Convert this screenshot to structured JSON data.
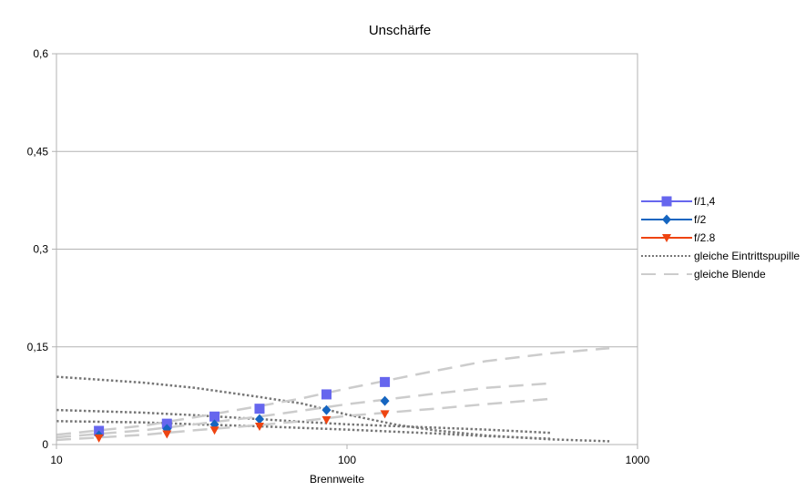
{
  "chart_data": {
    "type": "scatter",
    "title": "Unschärfe",
    "xlabel": "Brennweite",
    "ylabel": "",
    "x_scale": "log",
    "xlim": [
      10,
      1000
    ],
    "ylim": [
      0,
      0.6
    ],
    "x_ticks": [
      {
        "value": 10,
        "label": "10"
      },
      {
        "value": 100,
        "label": "100"
      },
      {
        "value": 1000,
        "label": "1000"
      }
    ],
    "y_ticks": [
      {
        "value": 0,
        "label": "0"
      },
      {
        "value": 0.15,
        "label": "0,15"
      },
      {
        "value": 0.3,
        "label": "0,3"
      },
      {
        "value": 0.45,
        "label": "0,45"
      },
      {
        "value": 0.6,
        "label": "0,6"
      }
    ],
    "grid": "horizontal",
    "legend_position": "right",
    "series": [
      {
        "name": "f/1,4",
        "marker": "square",
        "color": "#6666ee",
        "points": [
          [
            14,
            0.021
          ],
          [
            24,
            0.032
          ],
          [
            35,
            0.043
          ],
          [
            50,
            0.055
          ],
          [
            85,
            0.077
          ],
          [
            135,
            0.096
          ]
        ]
      },
      {
        "name": "f/2",
        "marker": "diamond",
        "color": "#1565c0",
        "points": [
          [
            14,
            0.014
          ],
          [
            24,
            0.024
          ],
          [
            35,
            0.031
          ],
          [
            50,
            0.039
          ],
          [
            85,
            0.053
          ],
          [
            135,
            0.067
          ]
        ]
      },
      {
        "name": "f/2.8",
        "marker": "triangle-down",
        "color": "#ee4411",
        "points": [
          [
            14,
            0.01
          ],
          [
            24,
            0.016
          ],
          [
            35,
            0.022
          ],
          [
            50,
            0.028
          ],
          [
            85,
            0.038
          ],
          [
            135,
            0.047
          ]
        ]
      }
    ],
    "reference_lines": [
      {
        "name": "gleiche Eintrittspupille",
        "style": "dotted",
        "color": "#777777",
        "curves": [
          [
            [
              10,
              0.104
            ],
            [
              20,
              0.095
            ],
            [
              30,
              0.087
            ],
            [
              50,
              0.073
            ],
            [
              70,
              0.063
            ],
            [
              100,
              0.046
            ],
            [
              150,
              0.03
            ],
            [
              200,
              0.022
            ],
            [
              300,
              0.014
            ],
            [
              500,
              0.008
            ],
            [
              800,
              0.005
            ]
          ],
          [
            [
              10,
              0.053
            ],
            [
              20,
              0.049
            ],
            [
              30,
              0.045
            ],
            [
              50,
              0.039
            ],
            [
              70,
              0.035
            ],
            [
              100,
              0.031
            ],
            [
              200,
              0.026
            ],
            [
              300,
              0.023
            ],
            [
              500,
              0.018
            ]
          ],
          [
            [
              10,
              0.036
            ],
            [
              20,
              0.034
            ],
            [
              30,
              0.031
            ],
            [
              50,
              0.028
            ],
            [
              100,
              0.023
            ],
            [
              200,
              0.017
            ],
            [
              300,
              0.013
            ],
            [
              500,
              0.009
            ]
          ]
        ]
      },
      {
        "name": "gleiche Blende",
        "style": "dashed",
        "color": "#cccccc",
        "curves": [
          [
            [
              10,
              0.015
            ],
            [
              20,
              0.029
            ],
            [
              30,
              0.042
            ],
            [
              50,
              0.059
            ],
            [
              70,
              0.071
            ],
            [
              100,
              0.086
            ],
            [
              200,
              0.113
            ],
            [
              300,
              0.128
            ],
            [
              500,
              0.14
            ],
            [
              800,
              0.148
            ]
          ],
          [
            [
              10,
              0.011
            ],
            [
              20,
              0.022
            ],
            [
              30,
              0.031
            ],
            [
              50,
              0.043
            ],
            [
              70,
              0.052
            ],
            [
              100,
              0.062
            ],
            [
              200,
              0.078
            ],
            [
              300,
              0.087
            ],
            [
              500,
              0.094
            ]
          ],
          [
            [
              10,
              0.007
            ],
            [
              20,
              0.015
            ],
            [
              30,
              0.022
            ],
            [
              50,
              0.03
            ],
            [
              70,
              0.036
            ],
            [
              100,
              0.044
            ],
            [
              200,
              0.055
            ],
            [
              300,
              0.062
            ],
            [
              500,
              0.07
            ]
          ]
        ]
      }
    ]
  }
}
